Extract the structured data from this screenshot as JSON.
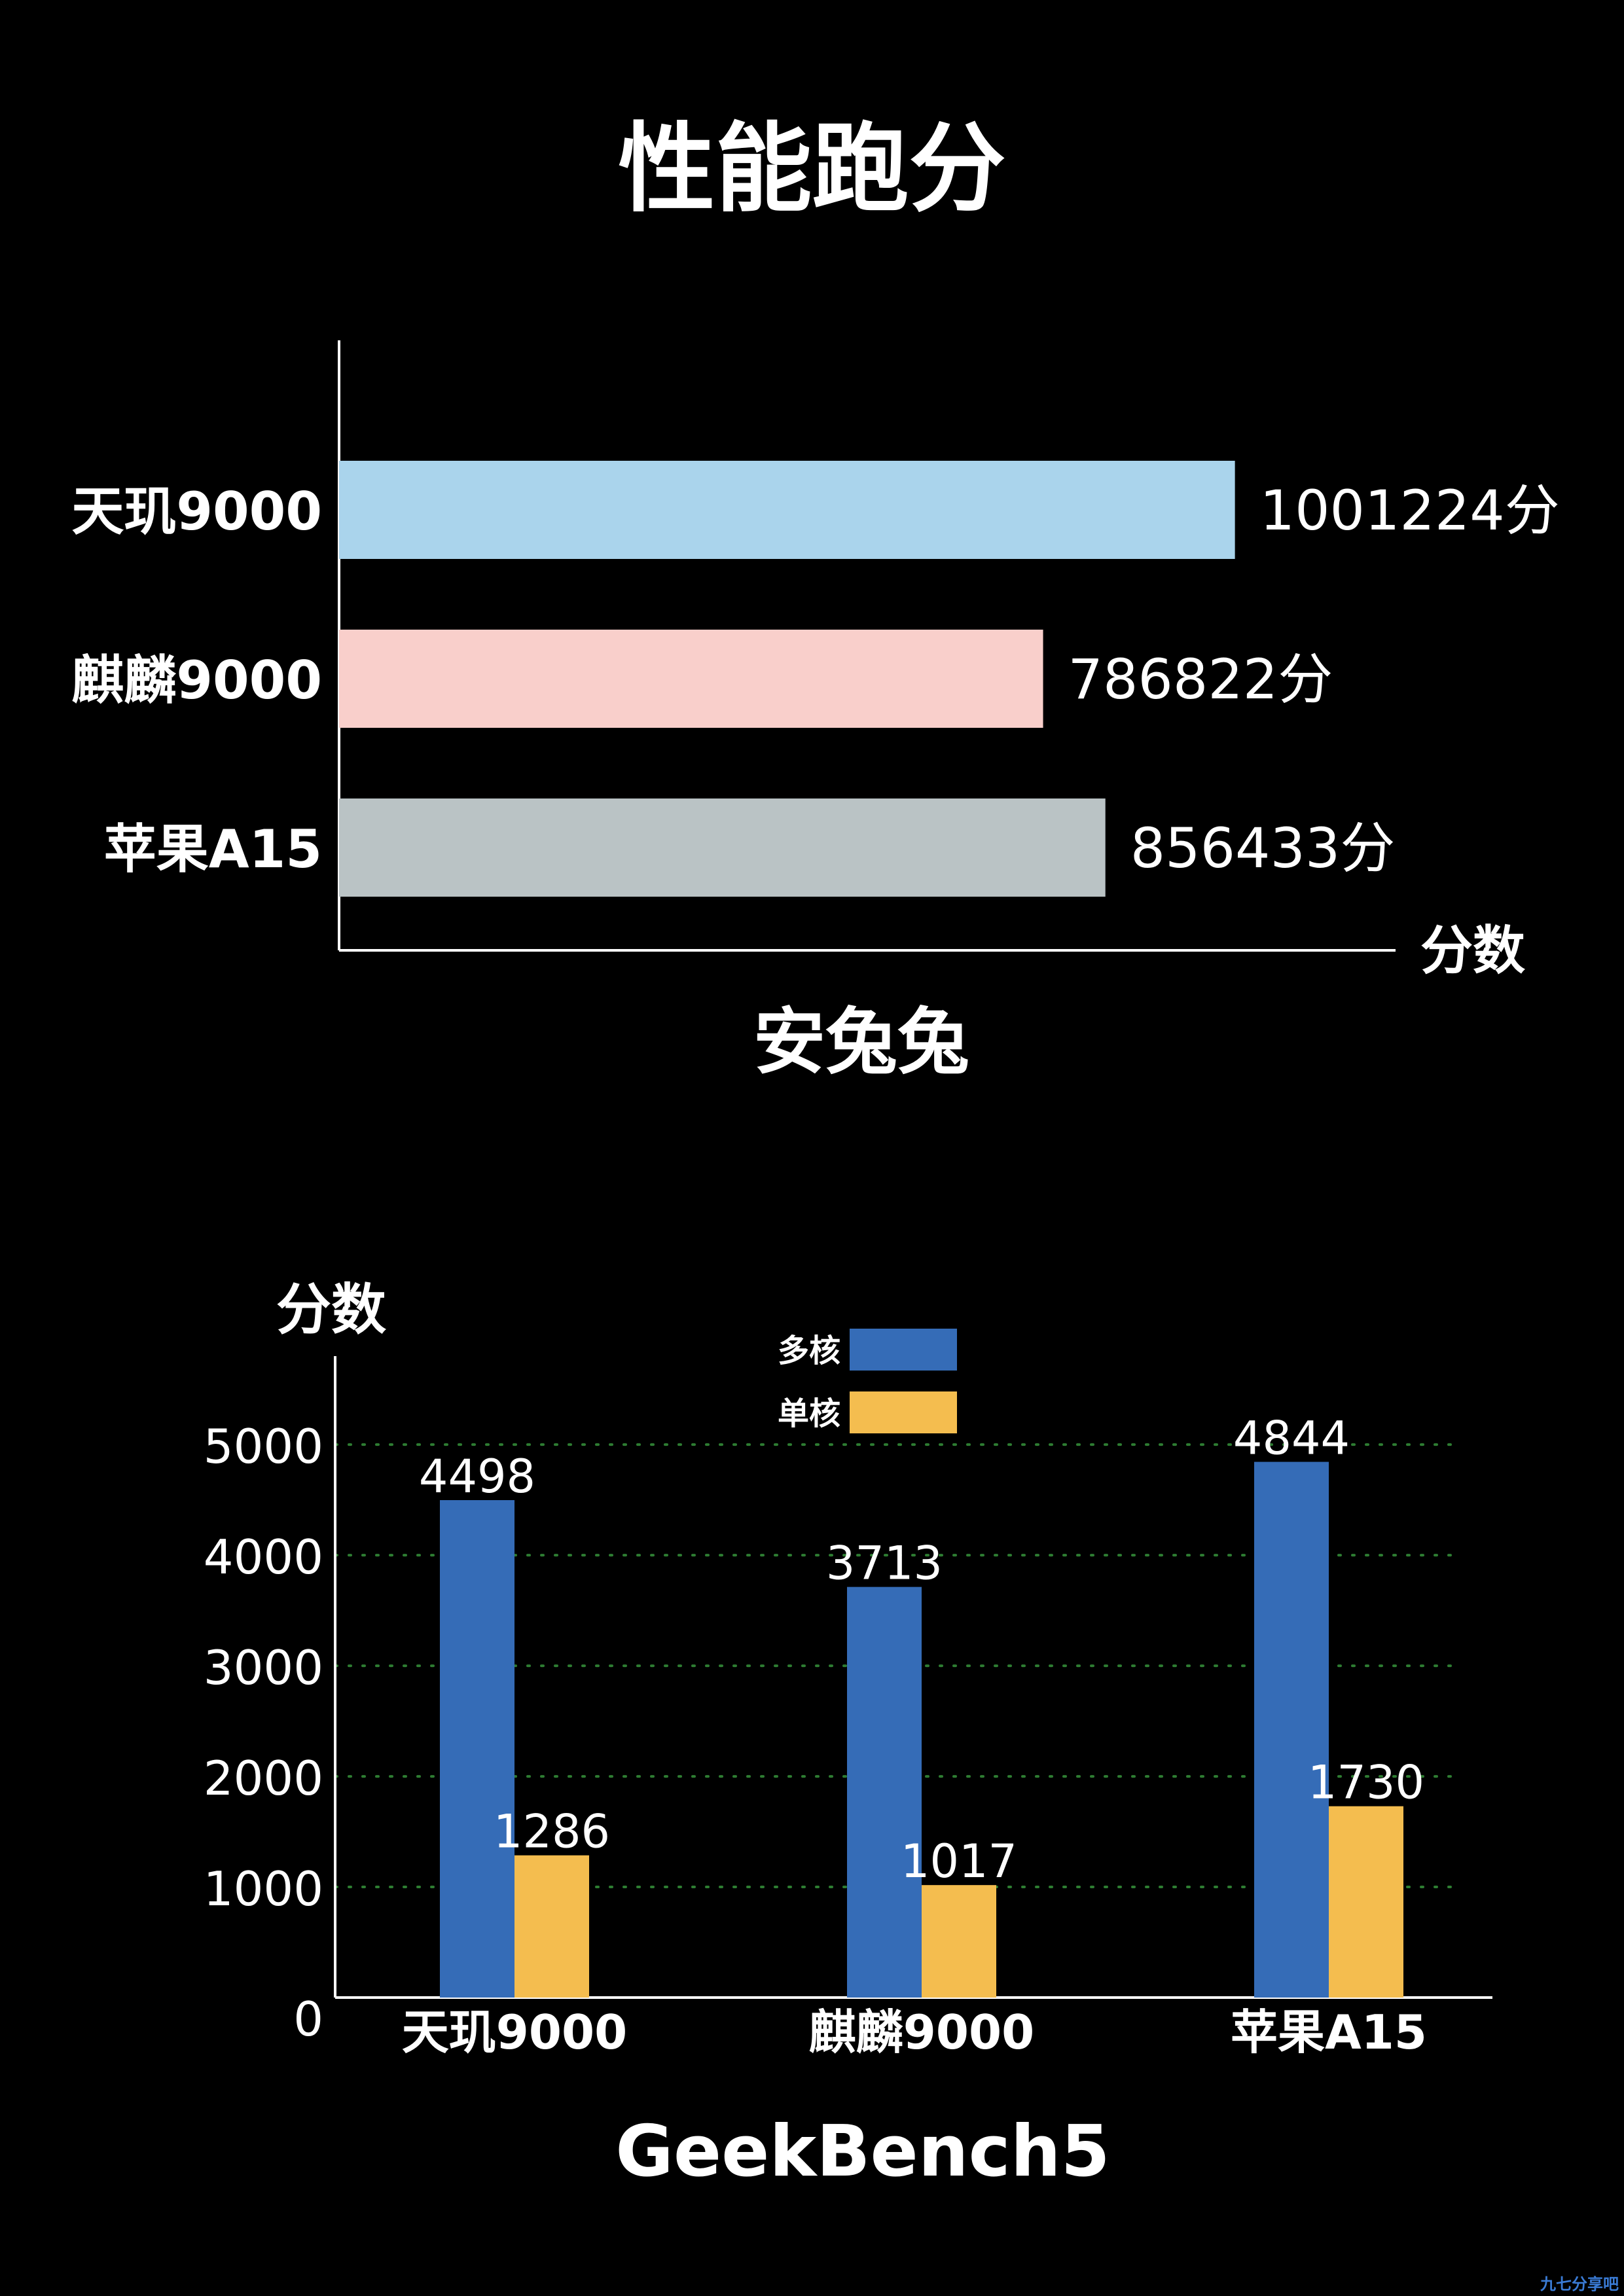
{
  "title": "性能跑分",
  "watermark": "九七分享吧",
  "chart_data": [
    {
      "type": "bar",
      "orientation": "horizontal",
      "title": "安兔兔",
      "xlabel": "分数",
      "categories": [
        "天玑9000",
        "麒麟9000",
        "苹果A15"
      ],
      "values": [
        1001224,
        786822,
        856433
      ],
      "value_suffix": "分",
      "colors": [
        "#aad4ec",
        "#f9cfcb",
        "#bac3c5"
      ],
      "xlim": [
        0,
        1150000
      ],
      "grid": false
    },
    {
      "type": "bar",
      "orientation": "vertical",
      "title": "GeekBench5",
      "ylabel": "分数",
      "categories": [
        "天玑9000",
        "麒麟9000",
        "苹果A15"
      ],
      "series": [
        {
          "name": "多核",
          "color": "#356cb7",
          "values": [
            4498,
            3713,
            4844
          ]
        },
        {
          "name": "单核",
          "color": "#f4bd4f",
          "values": [
            1286,
            1017,
            1730
          ]
        }
      ],
      "ylim": [
        0,
        5800
      ],
      "yticks": [
        0,
        1000,
        2000,
        3000,
        4000,
        5000
      ],
      "grid": true,
      "grid_color": "#2e7d32",
      "legend": "top"
    }
  ]
}
